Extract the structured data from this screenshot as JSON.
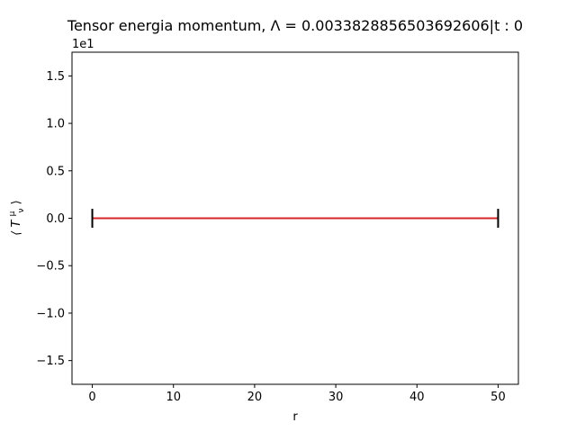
{
  "chart_data": {
    "type": "line",
    "title": "Tensor energia momentum, Λ = 0.0033828856503692606|t : 0",
    "xlabel": "r",
    "ylabel": "⟨ T",
    "ylabel_sup": "μ",
    "ylabel_sub": "ν",
    "ylabel_close": "⟩",
    "offset_text": "1e1",
    "xlim": [
      -2.5,
      52.5
    ],
    "ylim": [
      -1.75,
      1.75
    ],
    "xticks": [
      0,
      10,
      20,
      30,
      40,
      50
    ],
    "xtick_labels": [
      "0",
      "10",
      "20",
      "30",
      "40",
      "50"
    ],
    "yticks": [
      -1.5,
      -1.0,
      -0.5,
      0.0,
      0.5,
      1.0,
      1.5
    ],
    "ytick_labels": [
      "−1.5",
      "−1.0",
      "−0.5",
      "0.0",
      "0.5",
      "1.0",
      "1.5"
    ],
    "grid": false,
    "series": [
      {
        "color": "#1f3fbf",
        "x": [
          0,
          50
        ],
        "y": [
          0,
          0
        ]
      },
      {
        "color": "#ff7f0e",
        "x": [
          0,
          50
        ],
        "y": [
          0,
          0
        ]
      },
      {
        "color": "#d62728",
        "x": [
          0,
          50
        ],
        "y": [
          0,
          0
        ]
      }
    ],
    "boundary_markers": {
      "x": [
        0,
        50
      ],
      "y_range": [
        -0.1,
        0.1
      ],
      "color": "#000000"
    }
  }
}
